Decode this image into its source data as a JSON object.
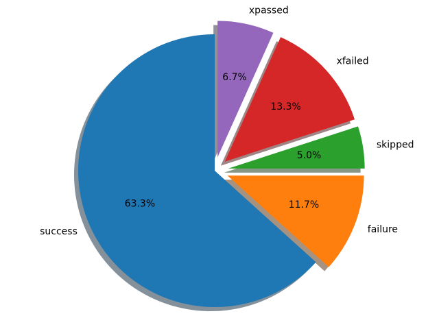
{
  "chart_data": {
    "type": "pie",
    "labels": [
      "success",
      "failure",
      "skipped",
      "xfailed",
      "xpassed"
    ],
    "values": [
      63.3,
      11.7,
      5.0,
      13.3,
      6.7
    ],
    "pct_labels": [
      "63.3%",
      "11.7%",
      "5.0%",
      "13.3%",
      "6.7%"
    ],
    "colors": [
      "#1f77b4",
      "#ff7f0e",
      "#2ca02c",
      "#d62728",
      "#9467bd"
    ],
    "explode": [
      0,
      0.1,
      0.1,
      0.1,
      0.1
    ],
    "startangle": 90,
    "counterclock": true,
    "shadow": true,
    "labeldistance": 1.1,
    "pctdistance": 0.6,
    "background": "#ffffff",
    "label_color": "#000000",
    "title": "",
    "legend": "none"
  }
}
